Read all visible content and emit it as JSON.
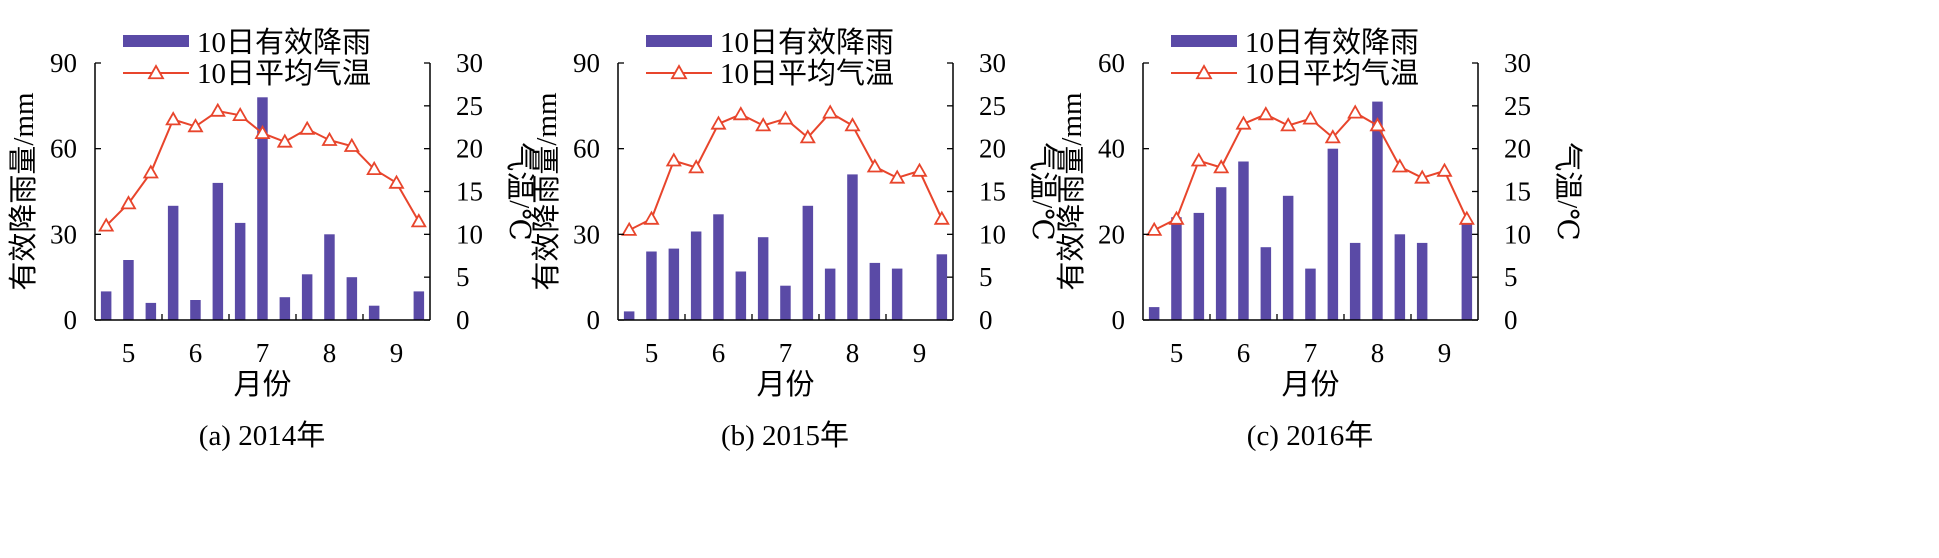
{
  "colors": {
    "bar": "#5a4aa6",
    "line": "#e8452c",
    "axis": "#000000"
  },
  "chart_data": [
    {
      "type": "bar+line",
      "caption": "(a) 2014年",
      "xlabel": "月份",
      "ylabel_left": "有效降雨量/mm",
      "ylabel_right": "气温/℃",
      "ylim_left": [
        0,
        90
      ],
      "yticks_left": [
        "0",
        "30",
        "60",
        "90"
      ],
      "ylim_right": [
        0,
        30
      ],
      "yticks_right": [
        "0",
        "5",
        "10",
        "15",
        "20",
        "25",
        "30"
      ],
      "x_tick_labels": [
        "5",
        "6",
        "7",
        "8",
        "9"
      ],
      "legend": {
        "position": "top-left",
        "bar_label": "10日有效降雨",
        "line_label": "10日平均气温"
      },
      "series": [
        {
          "name": "10日有效降雨",
          "type": "bar",
          "axis": "left",
          "values": [
            10,
            21,
            6,
            40,
            7,
            48,
            34,
            78,
            8,
            16,
            30,
            15,
            5,
            0,
            10
          ]
        },
        {
          "name": "10日平均气温",
          "type": "line",
          "axis": "right",
          "values": [
            11,
            13.6,
            17.2,
            23.4,
            22.6,
            24.4,
            23.9,
            21.8,
            20.8,
            22.3,
            21,
            20.3,
            17.6,
            16,
            11.5
          ]
        }
      ]
    },
    {
      "type": "bar+line",
      "caption": "(b) 2015年",
      "xlabel": "月份",
      "ylabel_left": "有效降雨量/mm",
      "ylabel_right": "气温/℃",
      "ylim_left": [
        0,
        90
      ],
      "yticks_left": [
        "0",
        "30",
        "60",
        "90"
      ],
      "ylim_right": [
        0,
        30
      ],
      "yticks_right": [
        "0",
        "5",
        "10",
        "15",
        "20",
        "25",
        "30"
      ],
      "x_tick_labels": [
        "5",
        "6",
        "7",
        "8",
        "9"
      ],
      "legend": {
        "position": "top-left",
        "bar_label": "10日有效降雨",
        "line_label": "10日平均气温"
      },
      "series": [
        {
          "name": "10日有效降雨",
          "type": "bar",
          "axis": "left",
          "values": [
            3,
            24,
            25,
            31,
            37,
            17,
            29,
            12,
            40,
            18,
            51,
            20,
            18,
            0,
            23
          ]
        },
        {
          "name": "10日平均气温",
          "type": "line",
          "axis": "right",
          "values": [
            10.5,
            11.8,
            18.6,
            17.8,
            22.9,
            24,
            22.7,
            23.5,
            21.3,
            24.2,
            22.7,
            17.9,
            16.6,
            17.4,
            11.8
          ]
        }
      ]
    },
    {
      "type": "bar+line",
      "caption": "(c) 2016年",
      "xlabel": "月份",
      "ylabel_left": "有效降雨量/mm",
      "ylabel_right": "气温/℃",
      "ylim_left": [
        0,
        60
      ],
      "yticks_left": [
        "0",
        "20",
        "40",
        "60"
      ],
      "ylim_right": [
        0,
        30
      ],
      "yticks_right": [
        "0",
        "5",
        "10",
        "15",
        "20",
        "25",
        "30"
      ],
      "x_tick_labels": [
        "5",
        "6",
        "7",
        "8",
        "9"
      ],
      "legend": {
        "position": "top-left",
        "bar_label": "10日有效降雨",
        "line_label": "10日平均气温"
      },
      "series": [
        {
          "name": "10日有效降雨",
          "type": "bar",
          "axis": "left",
          "values": [
            3,
            24,
            25,
            31,
            37,
            17,
            29,
            12,
            40,
            18,
            51,
            20,
            18,
            0,
            23
          ]
        },
        {
          "name": "10日平均气温",
          "type": "line",
          "axis": "right",
          "values": [
            10.5,
            11.8,
            18.6,
            17.8,
            22.9,
            24,
            22.7,
            23.5,
            21.3,
            24.2,
            22.7,
            17.9,
            16.6,
            17.4,
            11.8
          ]
        }
      ]
    }
  ]
}
